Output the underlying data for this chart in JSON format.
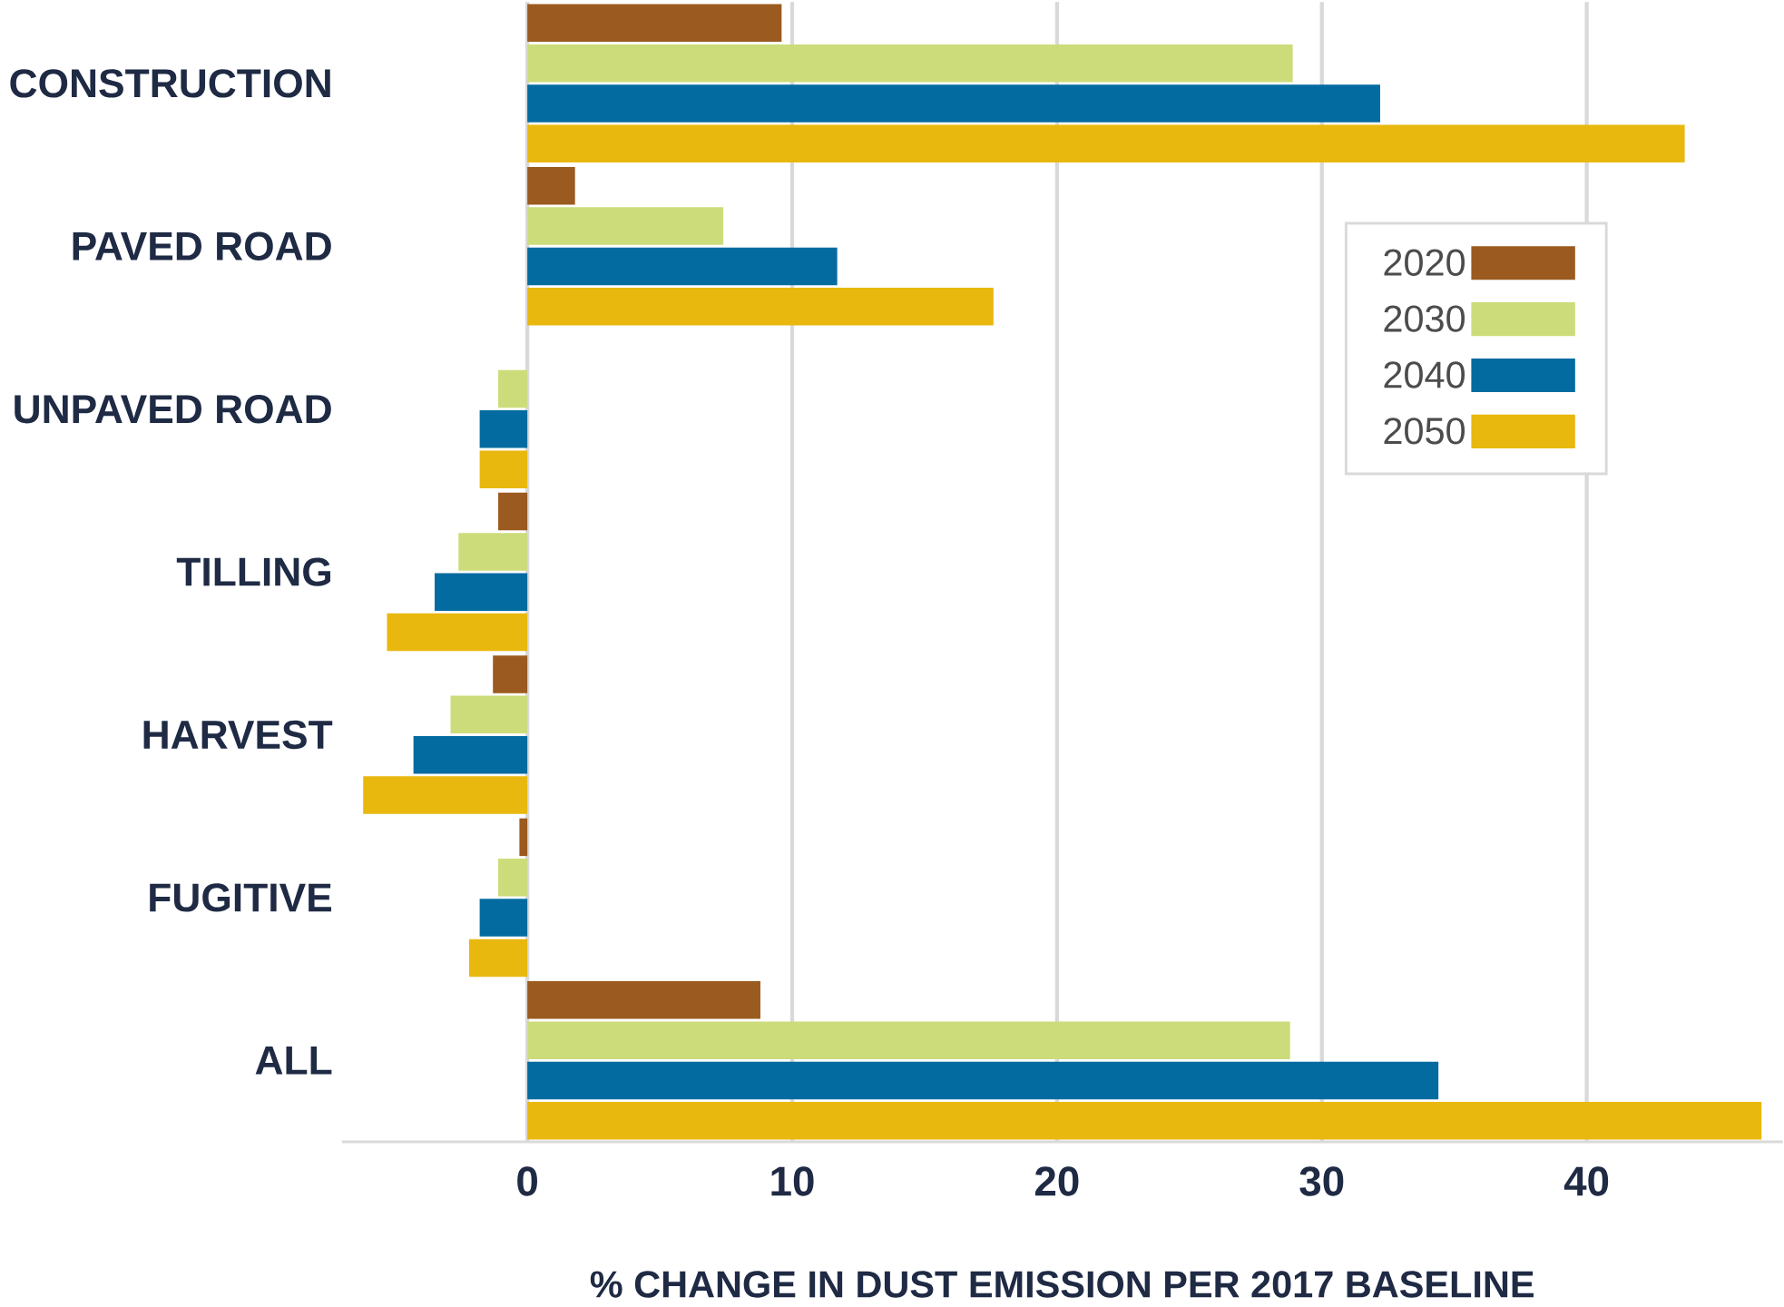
{
  "chart_data": {
    "type": "bar",
    "orientation": "horizontal",
    "xlabel": "% CHANGE IN DUST EMISSION PER 2017 BASELINE",
    "categories": [
      "CONSTRUCTION",
      "PAVED ROAD",
      "UNPAVED ROAD",
      "TILLING",
      "HARVEST",
      "FUGITIVE",
      "ALL"
    ],
    "series": [
      {
        "name": "2020",
        "color": "#9b5a1f",
        "values": [
          9.6,
          1.8,
          0,
          -1.1,
          -1.3,
          -0.3,
          8.8
        ]
      },
      {
        "name": "2030",
        "color": "#cddc7a",
        "values": [
          28.9,
          7.4,
          -1.1,
          -2.6,
          -2.9,
          -1.1,
          28.8
        ]
      },
      {
        "name": "2040",
        "color": "#036ba0",
        "values": [
          32.2,
          11.7,
          -1.8,
          -3.5,
          -4.3,
          -1.8,
          34.4
        ]
      },
      {
        "name": "2050",
        "color": "#e9b80f",
        "values": [
          43.7,
          17.6,
          -1.8,
          -5.3,
          -6.2,
          -2.2,
          46.6
        ]
      }
    ],
    "xlim": [
      -7,
      47.4
    ],
    "xticks": [
      0,
      10,
      20,
      30,
      40
    ],
    "grid": "x",
    "legend": "right"
  }
}
